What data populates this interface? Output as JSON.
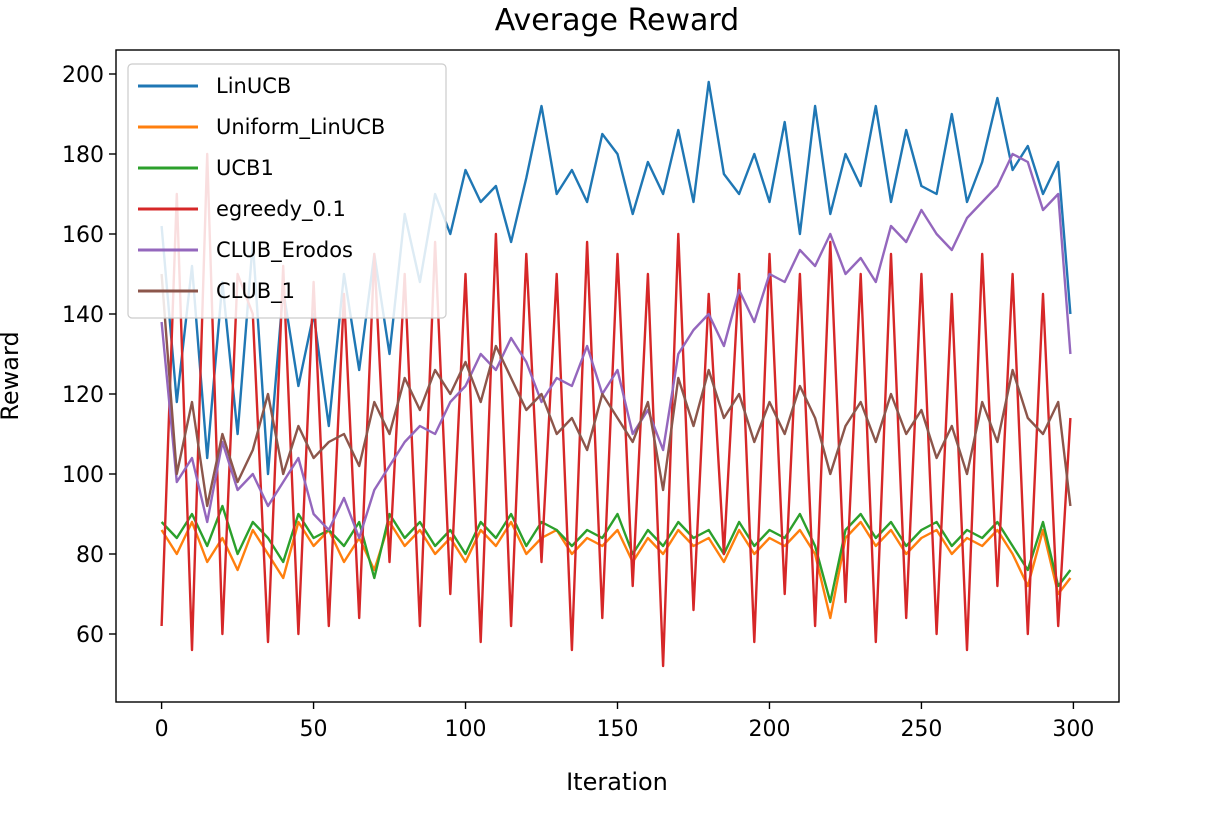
{
  "chart_data": {
    "type": "line",
    "title": "Average Reward",
    "xlabel": "Iteration",
    "ylabel": "Reward",
    "xlim": [
      -15,
      315
    ],
    "ylim": [
      43,
      206
    ],
    "xticks": [
      0,
      50,
      100,
      150,
      200,
      250,
      300
    ],
    "yticks": [
      60,
      80,
      100,
      120,
      140,
      160,
      180,
      200
    ],
    "grid": false,
    "legend_position": "upper-left",
    "series": [
      {
        "name": "LinUCB",
        "color": "#1f77b4",
        "x": [
          0,
          5,
          10,
          15,
          20,
          25,
          30,
          35,
          40,
          45,
          50,
          55,
          60,
          65,
          70,
          75,
          80,
          85,
          90,
          95,
          100,
          105,
          110,
          115,
          120,
          125,
          130,
          135,
          140,
          145,
          150,
          155,
          160,
          165,
          170,
          175,
          180,
          185,
          190,
          195,
          200,
          205,
          210,
          215,
          220,
          225,
          230,
          235,
          240,
          245,
          250,
          255,
          260,
          265,
          270,
          275,
          280,
          285,
          290,
          295,
          299
        ],
        "values": [
          162,
          118,
          152,
          104,
          148,
          110,
          158,
          100,
          146,
          122,
          140,
          112,
          150,
          126,
          155,
          130,
          165,
          148,
          170,
          160,
          176,
          168,
          172,
          158,
          174,
          192,
          170,
          176,
          168,
          185,
          180,
          165,
          178,
          170,
          186,
          168,
          198,
          175,
          170,
          180,
          168,
          188,
          160,
          192,
          165,
          180,
          172,
          192,
          168,
          186,
          172,
          170,
          190,
          168,
          178,
          194,
          176,
          182,
          170,
          178,
          140
        ]
      },
      {
        "name": "Uniform_LinUCB",
        "color": "#ff7f0e",
        "x": [
          0,
          5,
          10,
          15,
          20,
          25,
          30,
          35,
          40,
          45,
          50,
          55,
          60,
          65,
          70,
          75,
          80,
          85,
          90,
          95,
          100,
          105,
          110,
          115,
          120,
          125,
          130,
          135,
          140,
          145,
          150,
          155,
          160,
          165,
          170,
          175,
          180,
          185,
          190,
          195,
          200,
          205,
          210,
          215,
          220,
          225,
          230,
          235,
          240,
          245,
          250,
          255,
          260,
          265,
          270,
          275,
          280,
          285,
          290,
          295,
          299
        ],
        "values": [
          86,
          80,
          88,
          78,
          84,
          76,
          86,
          80,
          74,
          88,
          82,
          86,
          78,
          84,
          76,
          88,
          82,
          86,
          80,
          84,
          78,
          86,
          82,
          88,
          80,
          84,
          86,
          80,
          84,
          82,
          86,
          78,
          84,
          80,
          86,
          82,
          84,
          78,
          86,
          80,
          84,
          82,
          86,
          80,
          64,
          84,
          88,
          82,
          86,
          80,
          84,
          86,
          80,
          84,
          82,
          86,
          80,
          72,
          86,
          70,
          74
        ]
      },
      {
        "name": "UCB1",
        "color": "#2ca02c",
        "x": [
          0,
          5,
          10,
          15,
          20,
          25,
          30,
          35,
          40,
          45,
          50,
          55,
          60,
          65,
          70,
          75,
          80,
          85,
          90,
          95,
          100,
          105,
          110,
          115,
          120,
          125,
          130,
          135,
          140,
          145,
          150,
          155,
          160,
          165,
          170,
          175,
          180,
          185,
          190,
          195,
          200,
          205,
          210,
          215,
          220,
          225,
          230,
          235,
          240,
          245,
          250,
          255,
          260,
          265,
          270,
          275,
          280,
          285,
          290,
          295,
          299
        ],
        "values": [
          88,
          84,
          90,
          82,
          92,
          80,
          88,
          84,
          78,
          90,
          84,
          86,
          82,
          88,
          74,
          90,
          84,
          88,
          82,
          86,
          80,
          88,
          84,
          90,
          82,
          88,
          86,
          82,
          86,
          84,
          90,
          80,
          86,
          82,
          88,
          84,
          86,
          80,
          88,
          82,
          86,
          84,
          90,
          82,
          68,
          86,
          90,
          84,
          88,
          82,
          86,
          88,
          82,
          86,
          84,
          88,
          82,
          76,
          88,
          72,
          76
        ]
      },
      {
        "name": "egreedy_0.1",
        "color": "#d62728",
        "x": [
          0,
          5,
          10,
          15,
          20,
          25,
          30,
          35,
          40,
          45,
          50,
          55,
          60,
          65,
          70,
          75,
          80,
          85,
          90,
          95,
          100,
          105,
          110,
          115,
          120,
          125,
          130,
          135,
          140,
          145,
          150,
          155,
          160,
          165,
          170,
          175,
          180,
          185,
          190,
          195,
          200,
          205,
          210,
          215,
          220,
          225,
          230,
          235,
          240,
          245,
          250,
          255,
          260,
          265,
          270,
          275,
          280,
          285,
          290,
          295,
          299
        ],
        "values": [
          62,
          170,
          56,
          180,
          60,
          150,
          140,
          58,
          152,
          60,
          148,
          62,
          145,
          64,
          155,
          78,
          150,
          62,
          158,
          70,
          150,
          58,
          160,
          62,
          155,
          78,
          150,
          56,
          158,
          64,
          155,
          72,
          150,
          52,
          160,
          66,
          145,
          80,
          150,
          58,
          155,
          70,
          150,
          62,
          158,
          68,
          150,
          58,
          155,
          64,
          150,
          60,
          145,
          56,
          155,
          72,
          150,
          60,
          145,
          62,
          114
        ]
      },
      {
        "name": "CLUB_Erodos",
        "color": "#9467bd",
        "x": [
          0,
          5,
          10,
          15,
          20,
          25,
          30,
          35,
          40,
          45,
          50,
          55,
          60,
          65,
          70,
          75,
          80,
          85,
          90,
          95,
          100,
          105,
          110,
          115,
          120,
          125,
          130,
          135,
          140,
          145,
          150,
          155,
          160,
          165,
          170,
          175,
          180,
          185,
          190,
          195,
          200,
          205,
          210,
          215,
          220,
          225,
          230,
          235,
          240,
          245,
          250,
          255,
          260,
          265,
          270,
          275,
          280,
          285,
          290,
          295,
          299
        ],
        "values": [
          138,
          98,
          104,
          88,
          108,
          96,
          100,
          92,
          98,
          104,
          90,
          86,
          94,
          84,
          96,
          102,
          108,
          112,
          110,
          118,
          122,
          130,
          126,
          134,
          128,
          118,
          124,
          122,
          132,
          120,
          126,
          110,
          116,
          106,
          130,
          136,
          140,
          132,
          146,
          138,
          150,
          148,
          156,
          152,
          160,
          150,
          154,
          148,
          162,
          158,
          166,
          160,
          156,
          164,
          168,
          172,
          180,
          178,
          166,
          170,
          130
        ]
      },
      {
        "name": "CLUB_1",
        "color": "#8c564b",
        "x": [
          0,
          5,
          10,
          15,
          20,
          25,
          30,
          35,
          40,
          45,
          50,
          55,
          60,
          65,
          70,
          75,
          80,
          85,
          90,
          95,
          100,
          105,
          110,
          115,
          120,
          125,
          130,
          135,
          140,
          145,
          150,
          155,
          160,
          165,
          170,
          175,
          180,
          185,
          190,
          195,
          200,
          205,
          210,
          215,
          220,
          225,
          230,
          235,
          240,
          245,
          250,
          255,
          260,
          265,
          270,
          275,
          280,
          285,
          290,
          295,
          299
        ],
        "values": [
          150,
          100,
          118,
          92,
          110,
          98,
          106,
          120,
          100,
          112,
          104,
          108,
          110,
          102,
          118,
          110,
          124,
          116,
          126,
          120,
          128,
          118,
          132,
          124,
          116,
          120,
          110,
          114,
          106,
          120,
          114,
          108,
          118,
          96,
          124,
          112,
          126,
          114,
          120,
          108,
          118,
          110,
          122,
          114,
          100,
          112,
          118,
          108,
          120,
          110,
          116,
          104,
          112,
          100,
          118,
          108,
          126,
          114,
          110,
          118,
          92
        ]
      }
    ]
  }
}
